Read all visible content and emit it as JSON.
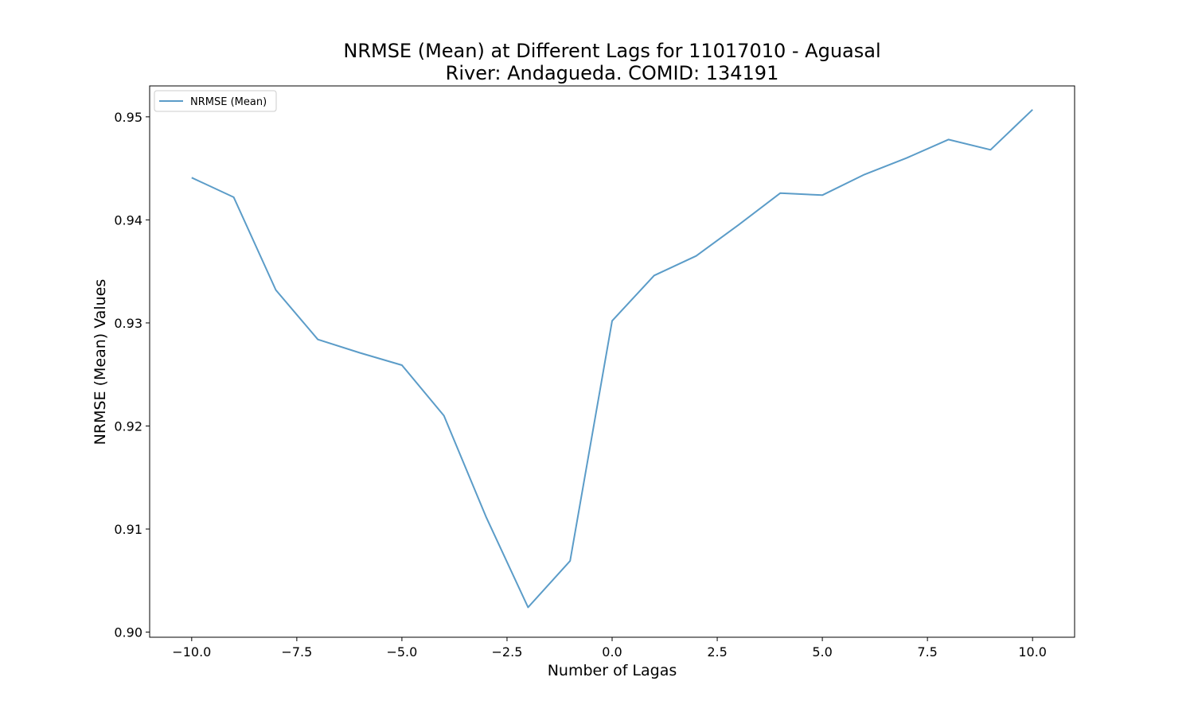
{
  "chart_data": {
    "type": "line",
    "title": "NRMSE (Mean) at Different Lags for 11017010 - Aguasal",
    "subtitle": "River: Andagueda. COMID: 134191",
    "xlabel": "Number of Lagas",
    "ylabel": "NRMSE (Mean) Values",
    "xlim": [
      -11,
      11
    ],
    "ylim": [
      0.8995,
      0.953
    ],
    "xticks": [
      -10.0,
      -7.5,
      -5.0,
      -2.5,
      0.0,
      2.5,
      5.0,
      7.5,
      10.0
    ],
    "xtick_labels": [
      "−10.0",
      "−7.5",
      "−5.0",
      "−2.5",
      "0.0",
      "2.5",
      "5.0",
      "7.5",
      "10.0"
    ],
    "yticks": [
      0.9,
      0.91,
      0.92,
      0.93,
      0.94,
      0.95
    ],
    "ytick_labels": [
      "0.90",
      "0.91",
      "0.92",
      "0.93",
      "0.94",
      "0.95"
    ],
    "grid": false,
    "legend": "upper-left",
    "series": [
      {
        "name": "NRMSE (Mean)",
        "color": "#5b9cc8",
        "x": [
          -10,
          -9,
          -8,
          -7,
          -6,
          -5,
          -4,
          -3,
          -2,
          -1,
          0,
          1,
          2,
          3,
          4,
          5,
          6,
          7,
          8,
          9,
          10
        ],
        "y": [
          0.9441,
          0.9422,
          0.9332,
          0.9284,
          0.9271,
          0.9259,
          0.921,
          0.9112,
          0.9024,
          0.9069,
          0.9302,
          0.9346,
          0.9365,
          0.9395,
          0.9426,
          0.9424,
          0.9444,
          0.946,
          0.9478,
          0.9468,
          0.9507
        ]
      }
    ]
  }
}
